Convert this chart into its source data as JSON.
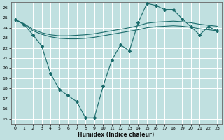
{
  "xlabel": "Humidex (Indice chaleur)",
  "bg_color": "#c0e0e0",
  "grid_color": "#ffffff",
  "line_color": "#1a6b6b",
  "xlim": [
    -0.5,
    23.5
  ],
  "ylim": [
    14.5,
    26.5
  ],
  "xticks": [
    0,
    1,
    2,
    3,
    4,
    5,
    6,
    7,
    8,
    9,
    10,
    11,
    12,
    13,
    14,
    15,
    16,
    17,
    18,
    19,
    20,
    21,
    22,
    23
  ],
  "yticks": [
    15,
    16,
    17,
    18,
    19,
    20,
    21,
    22,
    23,
    24,
    25,
    26
  ],
  "series1_x": [
    0,
    1,
    2,
    3,
    4,
    5,
    6,
    7,
    8,
    9,
    10,
    11,
    12,
    13,
    14,
    15,
    16,
    17,
    18,
    19,
    20,
    21,
    22,
    23
  ],
  "series1_y": [
    24.8,
    24.3,
    23.3,
    22.2,
    19.5,
    17.9,
    17.3,
    16.7,
    15.1,
    15.1,
    18.2,
    20.8,
    22.3,
    21.7,
    24.5,
    26.4,
    26.2,
    25.8,
    25.8,
    24.9,
    24.1,
    23.3,
    24.1,
    23.7
  ],
  "series2_x": [
    0,
    1,
    2,
    3,
    4,
    5,
    6,
    7,
    8,
    9,
    10,
    11,
    12,
    13,
    14,
    15,
    16,
    17,
    18,
    19,
    20,
    21,
    22,
    23
  ],
  "series2_y": [
    24.8,
    24.4,
    23.85,
    23.5,
    23.3,
    23.2,
    23.2,
    23.25,
    23.3,
    23.4,
    23.55,
    23.7,
    23.85,
    24.0,
    24.2,
    24.45,
    24.55,
    24.6,
    24.65,
    24.6,
    24.5,
    24.35,
    24.25,
    24.15
  ],
  "series3_x": [
    0,
    1,
    2,
    3,
    4,
    5,
    6,
    7,
    8,
    9,
    10,
    11,
    12,
    13,
    14,
    15,
    16,
    17,
    18,
    19,
    20,
    21,
    22,
    23
  ],
  "series3_y": [
    24.8,
    24.35,
    23.7,
    23.35,
    23.1,
    22.95,
    22.9,
    22.9,
    22.95,
    23.05,
    23.2,
    23.35,
    23.5,
    23.65,
    23.8,
    24.0,
    24.1,
    24.15,
    24.2,
    24.15,
    24.05,
    23.9,
    23.8,
    23.7
  ]
}
